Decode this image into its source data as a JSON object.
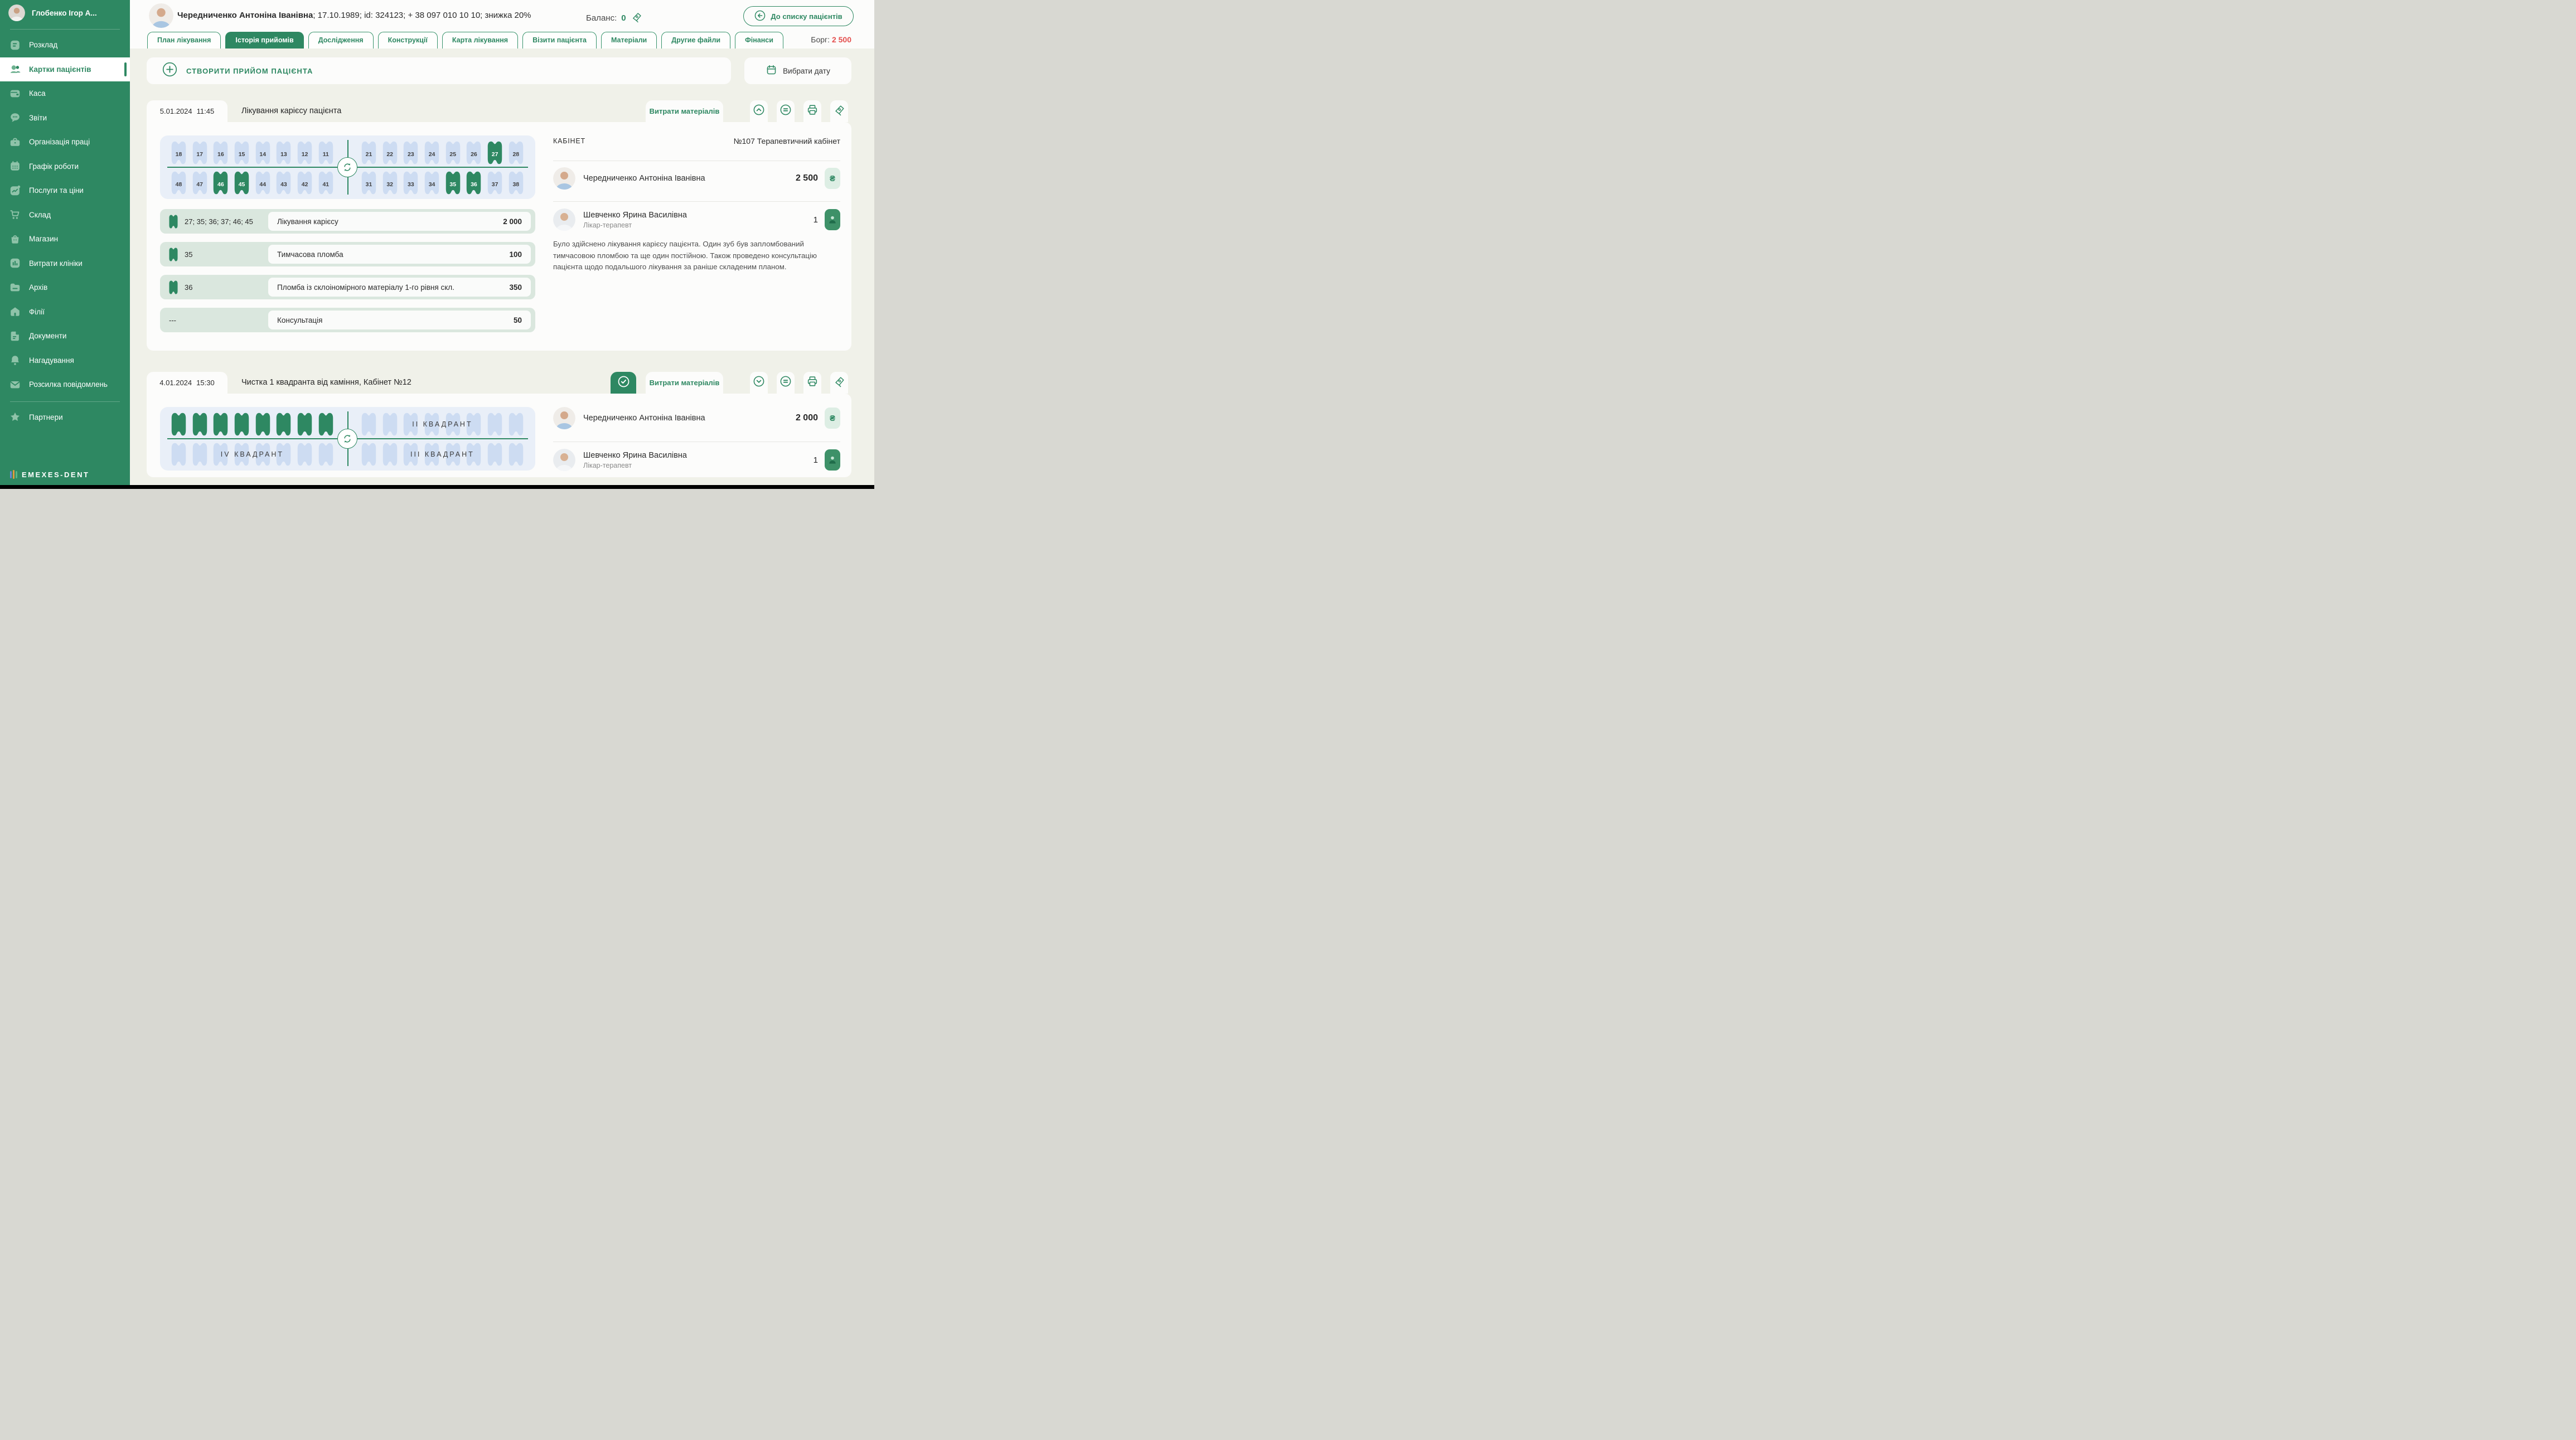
{
  "colors": {
    "accent": "#2E8862",
    "sidebar_bg": "#2E8862",
    "debt_red": "#E4504F",
    "tooth_blue": "#CDDCF2",
    "tooth_active": "#2E8862",
    "panel_blue": "#E9EFF8",
    "service_row_bg": "#DAE7DE",
    "currency_badge_bg": "#DDEEE4"
  },
  "sidebar": {
    "user_name": "Глобенко Ігор А...",
    "items": [
      {
        "label": "Розклад",
        "icon": "schedule-icon"
      },
      {
        "label": "Картки пацієнтів",
        "icon": "patients-icon",
        "active": true
      },
      {
        "label": "Каса",
        "icon": "cash-icon"
      },
      {
        "label": "Звіти",
        "icon": "reports-icon"
      },
      {
        "label": "Організація праці",
        "icon": "organization-icon"
      },
      {
        "label": "Графік роботи",
        "icon": "work-schedule-icon"
      },
      {
        "label": "Послуги та ціни",
        "icon": "services-icon"
      },
      {
        "label": "Склад",
        "icon": "warehouse-icon"
      },
      {
        "label": "Магазин",
        "icon": "shop-icon"
      },
      {
        "label": "Витрати клініки",
        "icon": "expenses-icon"
      },
      {
        "label": "Архів",
        "icon": "archive-icon"
      },
      {
        "label": "Філії",
        "icon": "branches-icon"
      },
      {
        "label": "Документи",
        "icon": "documents-icon"
      },
      {
        "label": "Нагадування",
        "icon": "reminders-icon"
      },
      {
        "label": "Розсилка повідомлень",
        "icon": "mailing-icon"
      },
      {
        "label": "Партнери",
        "icon": "partners-icon"
      }
    ],
    "logo": "emexes-dent"
  },
  "header": {
    "patient_name": "Чередниченко Антоніна Іванівна",
    "patient_details": "; 17.10.1989; id: 324123; + 38 097 010 10 10; знижка 20%",
    "balance_label": "Баланс:",
    "balance_value": "0",
    "back_button": "До списку пацієнтів",
    "debt_label": "Борг:",
    "debt_value": "2 500"
  },
  "tabs": [
    {
      "label": "План лікування"
    },
    {
      "label": "Історія прийомів",
      "active": true
    },
    {
      "label": "Дослідження"
    },
    {
      "label": "Конструкції"
    },
    {
      "label": "Карта лікування"
    },
    {
      "label": "Візити пацієнта"
    },
    {
      "label": "Матеріали"
    },
    {
      "label": "Другие файли"
    },
    {
      "label": "Фінанси"
    }
  ],
  "toolbar": {
    "create_appointment": "СТВОРИТИ ПРИЙОМ ПАЦІЄНТА",
    "choose_date": "Вибрати дату"
  },
  "teeth_chart": {
    "rows": [
      {
        "left": [
          "18",
          "17",
          "16",
          "15",
          "14",
          "13",
          "12",
          "11"
        ],
        "right": [
          "21",
          "22",
          "23",
          "24",
          "25",
          "26",
          "27",
          "28"
        ]
      },
      {
        "left": [
          "48",
          "47",
          "46",
          "45",
          "44",
          "43",
          "42",
          "41"
        ],
        "right": [
          "31",
          "32",
          "33",
          "34",
          "35",
          "36",
          "37",
          "38"
        ]
      }
    ],
    "active_teeth": [
      "27",
      "46",
      "45",
      "35",
      "36"
    ]
  },
  "appointment1": {
    "date": "5.01.2024",
    "time": "11:45",
    "title": "Лікування карієсу пацієнта",
    "materials_button": "Витрати матеріалів",
    "actions": [
      "chevron-up-circle-icon",
      "equals-circle-icon",
      "printer-icon",
      "pen-tag-icon"
    ],
    "cabinet_label": "КАБІНЕТ",
    "cabinet_value": "№107 Терапевтичний кабінет",
    "services": [
      {
        "teeth": "27; 35; 36; 37; 46; 45",
        "name": "Лікування карієсу",
        "price": "2 000"
      },
      {
        "teeth": "35",
        "name": "Тимчасова пломба",
        "price": "100"
      },
      {
        "teeth": "36",
        "name": "Пломба із склоіномірного матеріалу 1-го рівня скл.",
        "price": "350"
      },
      {
        "teeth": "---",
        "name": "Консультація",
        "price": "50"
      }
    ],
    "patient": {
      "name": "Чередниченко Антоніна Іванівна",
      "amount": "2 500",
      "currency": "₴"
    },
    "doctor": {
      "name": "Шевченко Ярина Василівна",
      "role": "Лікар-терапевт",
      "count": "1"
    },
    "description": "Було здійснено лікування карієсу пацієнта. Один зуб був запломбований тимчасовою пломбою та ще один постійною. Також проведено консультацію пацієнта щодо подальшого лікування за раніше складеним планом."
  },
  "appointment2": {
    "date": "4.01.2024",
    "time": "15:30",
    "title": "Чистка 1 квадранта від каміння, Кабінет №12",
    "status_done": true,
    "materials_button": "Витрати матеріалів",
    "actions": [
      "check-circle-icon",
      "chevron-down-circle-icon",
      "equals-circle-icon",
      "printer-icon",
      "pen-tag-icon"
    ],
    "quadrant_chart": {
      "rows": [
        {
          "left": {
            "active": true,
            "label": ""
          },
          "right": {
            "active": false,
            "label": "II КВАДРАНТ"
          }
        },
        {
          "left": {
            "active": false,
            "label": "IV КВАДРАНТ"
          },
          "right": {
            "active": false,
            "label": "III КВАДРАНТ"
          }
        }
      ]
    },
    "patient": {
      "name": "Чередниченко Антоніна Іванівна",
      "amount": "2 000",
      "currency": "₴"
    },
    "doctor": {
      "name": "Шевченко Ярина Василівна",
      "role": "Лікар-терапевт",
      "count": "1"
    }
  }
}
